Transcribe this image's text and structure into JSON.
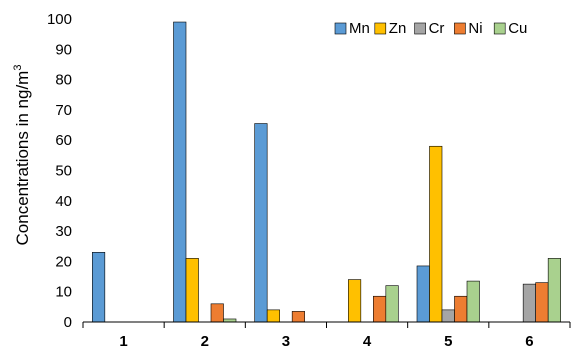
{
  "chart_data": {
    "type": "bar",
    "categories": [
      "1",
      "2",
      "3",
      "4",
      "5",
      "6"
    ],
    "series": [
      {
        "name": "Mn",
        "color": "#5B9BD5",
        "values": [
          23,
          99,
          65.5,
          0,
          18.5,
          0
        ]
      },
      {
        "name": "Zn",
        "color": "#FFC000",
        "values": [
          0,
          21,
          4,
          14,
          58,
          0
        ]
      },
      {
        "name": "Cr",
        "color": "#A5A5A5",
        "values": [
          0,
          0,
          0,
          0,
          4,
          12.5
        ]
      },
      {
        "name": "Ni",
        "color": "#ED7D31",
        "values": [
          0,
          6,
          3.5,
          8.5,
          8.5,
          13
        ]
      },
      {
        "name": "Cu",
        "color": "#A9D18E",
        "values": [
          0,
          1,
          0,
          12,
          13.5,
          21
        ]
      }
    ],
    "ylabel": "Concentrations in ng/m",
    "ylabel_superscript": "3",
    "ylim": [
      0,
      100
    ],
    "yticks": [
      0,
      10,
      20,
      30,
      40,
      50,
      60,
      70,
      80,
      90,
      100
    ],
    "grid": false,
    "legend_position": "top-right"
  }
}
